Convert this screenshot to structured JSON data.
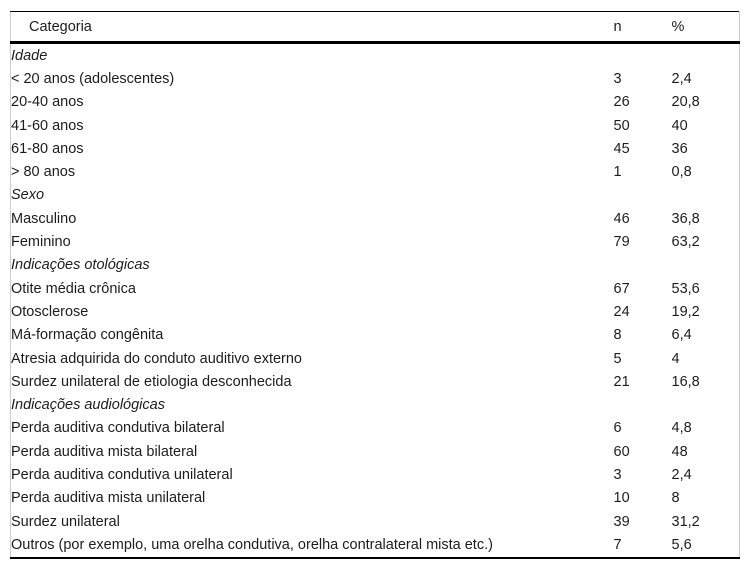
{
  "colors": {
    "rule": "#000000",
    "frame": "#cccccc",
    "text": "#1d1d1d",
    "background": "#ffffff"
  },
  "table": {
    "header": {
      "category": "Categoria",
      "n": "n",
      "pct": "%"
    },
    "sections": [
      {
        "label": "Idade",
        "rows": [
          {
            "label": "< 20 anos (adolescentes)",
            "n": "3",
            "pct": "2,4"
          },
          {
            "label": "20-40 anos",
            "n": "26",
            "pct": "20,8"
          },
          {
            "label": "41-60 anos",
            "n": "50",
            "pct": "40"
          },
          {
            "label": "61-80 anos",
            "n": "45",
            "pct": "36"
          },
          {
            "label": "> 80 anos",
            "n": "1",
            "pct": "0,8"
          }
        ]
      },
      {
        "label": "Sexo",
        "rows": [
          {
            "label": "Masculino",
            "n": "46",
            "pct": "36,8"
          },
          {
            "label": "Feminino",
            "n": "79",
            "pct": "63,2"
          }
        ]
      },
      {
        "label": "Indicações otológicas",
        "rows": [
          {
            "label": "Otite média crônica",
            "n": "67",
            "pct": "53,6"
          },
          {
            "label": "Otosclerose",
            "n": "24",
            "pct": "19,2"
          },
          {
            "label": "Má-formação congênita",
            "n": "8",
            "pct": "6,4"
          },
          {
            "label": "Atresia adquirida do conduto auditivo externo",
            "n": "5",
            "pct": "4"
          },
          {
            "label": "Surdez unilateral de etiologia desconhecida",
            "n": "21",
            "pct": "16,8"
          }
        ]
      },
      {
        "label": "Indicações audiológicas",
        "rows": [
          {
            "label": "Perda auditiva condutiva bilateral",
            "n": "6",
            "pct": "4,8"
          },
          {
            "label": "Perda auditiva mista bilateral",
            "n": "60",
            "pct": "48"
          },
          {
            "label": "Perda auditiva condutiva unilateral",
            "n": "3",
            "pct": "2,4"
          },
          {
            "label": "Perda auditiva mista unilateral",
            "n": "10",
            "pct": "8"
          },
          {
            "label": "Surdez unilateral",
            "n": "39",
            "pct": "31,2"
          },
          {
            "label": "Outros (por exemplo, uma orelha condutiva, orelha contralateral mista etc.)",
            "n": "7",
            "pct": "5,6"
          }
        ]
      }
    ]
  }
}
